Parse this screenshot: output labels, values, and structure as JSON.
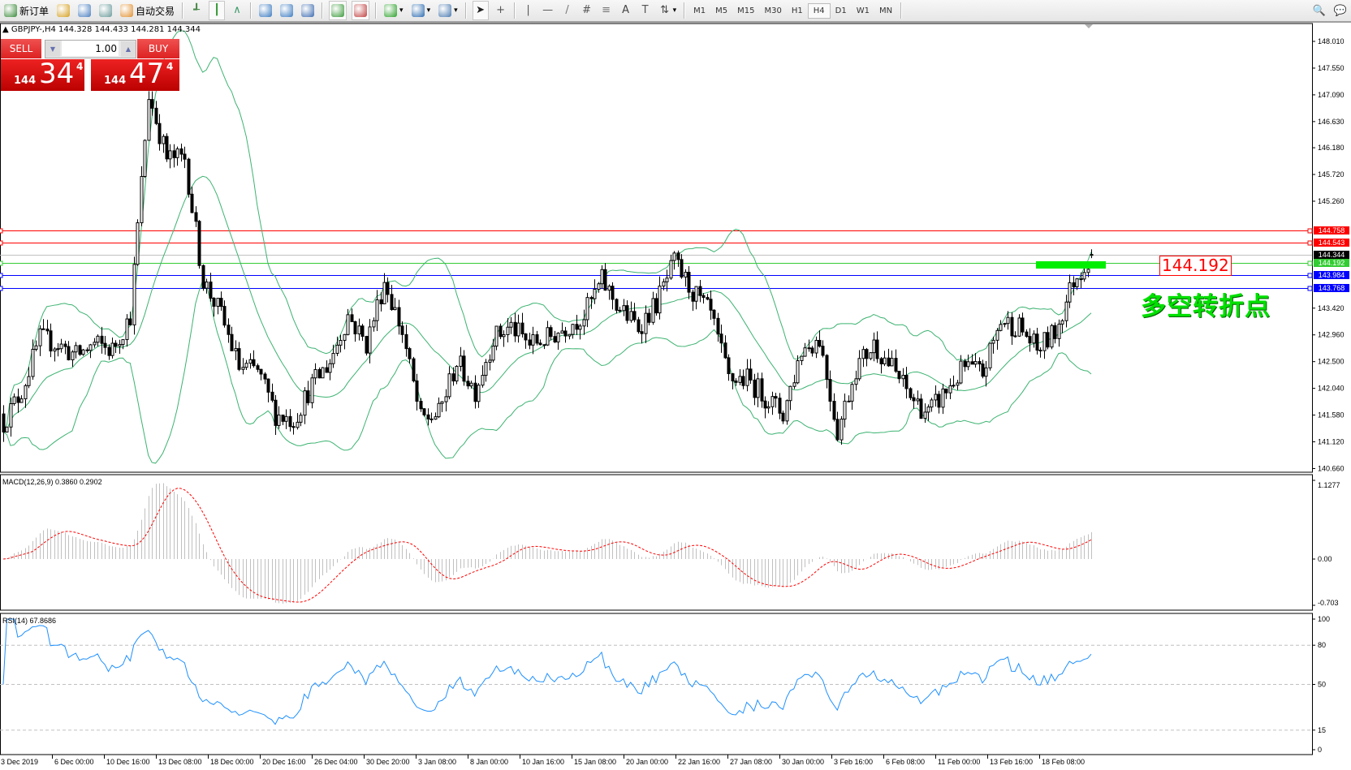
{
  "toolbar": {
    "new_order": "新订单",
    "auto_trading": "自动交易",
    "icons": [
      "new-order-icon",
      "market-watch-icon",
      "navigator-icon",
      "signals-icon",
      "auto-trading-icon",
      "bar-chart-icon",
      "candlestick-icon",
      "line-chart-icon",
      "zoom-in-icon",
      "zoom-out-icon",
      "tile-windows-icon",
      "auto-scroll-icon",
      "chart-shift-icon",
      "indicators-icon",
      "periods-icon",
      "templates-icon",
      "cursor-icon",
      "crosshair-icon",
      "vertical-line-icon",
      "horizontal-line-icon",
      "trendline-icon",
      "equidistant-channel-icon",
      "fibonacci-icon",
      "text-icon",
      "text-label-icon",
      "arrows-icon"
    ],
    "timeframes": [
      "M1",
      "M5",
      "M15",
      "M30",
      "H1",
      "H4",
      "D1",
      "W1",
      "MN"
    ],
    "active_timeframe": "H4"
  },
  "chart": {
    "header": "GBPJPY-,H4  144.328 144.433 144.281 144.344",
    "symbol": "GBPJPY-",
    "period": "H4",
    "ohlc": {
      "open": 144.328,
      "high": 144.433,
      "low": 144.281,
      "close": 144.344
    }
  },
  "one_click": {
    "sell_label": "SELL",
    "buy_label": "BUY",
    "lot": "1.00",
    "sell_price": {
      "big": "144",
      "main": "34",
      "tiny": "4"
    },
    "buy_price": {
      "big": "144",
      "main": "47",
      "tiny": "4"
    }
  },
  "price_axis": [
    "148.010",
    "147.550",
    "147.090",
    "146.630",
    "146.180",
    "145.720",
    "145.260",
    "143.420",
    "142.960",
    "142.500",
    "142.040",
    "141.580",
    "141.120",
    "140.660"
  ],
  "levels": [
    {
      "price": 144.758,
      "label": "144.758",
      "color": "#ff0000",
      "role": "resistance"
    },
    {
      "price": 144.543,
      "label": "144.543",
      "color": "#ff0000",
      "role": "resistance"
    },
    {
      "price": 144.344,
      "label": "144.344",
      "color": "#000000",
      "role": "bid"
    },
    {
      "price": 144.192,
      "label": "144.192",
      "color": "#33cc33",
      "role": "pivot"
    },
    {
      "price": 143.984,
      "label": "143.984",
      "color": "#0000ff",
      "role": "support"
    },
    {
      "price": 143.768,
      "label": "143.768",
      "color": "#0000ff",
      "role": "support"
    }
  ],
  "annotation": {
    "price_label": "144.192",
    "text": "多空转折点",
    "color": "#00e000"
  },
  "macd": {
    "label": "MACD(12,26,9) 0.3860 0.2902",
    "axis": [
      "1.1277",
      "0.00",
      "-0.703"
    ],
    "histogram_color": "#c0c0c0",
    "signal_color": "#ff0000"
  },
  "rsi": {
    "label": "RSI(14) 67.8686",
    "axis": [
      "100",
      "80",
      "50",
      "15",
      "0"
    ],
    "levels": [
      80,
      50,
      15
    ],
    "color": "#1e90ff"
  },
  "time_axis": [
    "3 Dec 2019",
    "6 Dec 00:00",
    "10 Dec 16:00",
    "13 Dec 08:00",
    "18 Dec 00:00",
    "20 Dec 16:00",
    "26 Dec 04:00",
    "30 Dec 20:00",
    "3 Jan 08:00",
    "8 Jan 00:00",
    "10 Jan 16:00",
    "15 Jan 08:00",
    "20 Jan 00:00",
    "22 Jan 16:00",
    "27 Jan 08:00",
    "30 Jan 00:00",
    "3 Feb 16:00",
    "6 Feb 08:00",
    "11 Feb 00:00",
    "13 Feb 16:00",
    "18 Feb 08:00"
  ],
  "chart_data": {
    "type": "candlestick",
    "indicators": [
      "Bollinger Bands(20,2)",
      "MACD(12,26,9)",
      "RSI(14)"
    ],
    "ylim": [
      140.66,
      148.01
    ],
    "close_path": [
      141.45,
      142.0,
      142.9,
      142.8,
      142.6,
      142.8,
      142.7,
      143.3,
      147.1,
      146.0,
      146.0,
      143.9,
      143.3,
      142.4,
      142.34,
      141.6,
      141.5,
      142.1,
      142.5,
      143.3,
      142.8,
      143.9,
      143.0,
      141.5,
      141.6,
      142.5,
      142.0,
      142.9,
      143.1,
      142.8,
      142.9,
      143.1,
      143.3,
      143.9,
      143.4,
      143.1,
      143.5,
      144.2,
      143.7,
      143.3,
      142.2,
      142.2,
      141.9,
      141.6,
      142.7,
      142.9,
      141.3,
      142.4,
      142.8,
      142.4,
      141.9,
      141.6,
      142.0,
      142.4,
      142.3,
      143.2,
      143.1,
      142.7,
      143.0,
      143.9,
      144.344
    ],
    "band_color": "#3cb371"
  }
}
